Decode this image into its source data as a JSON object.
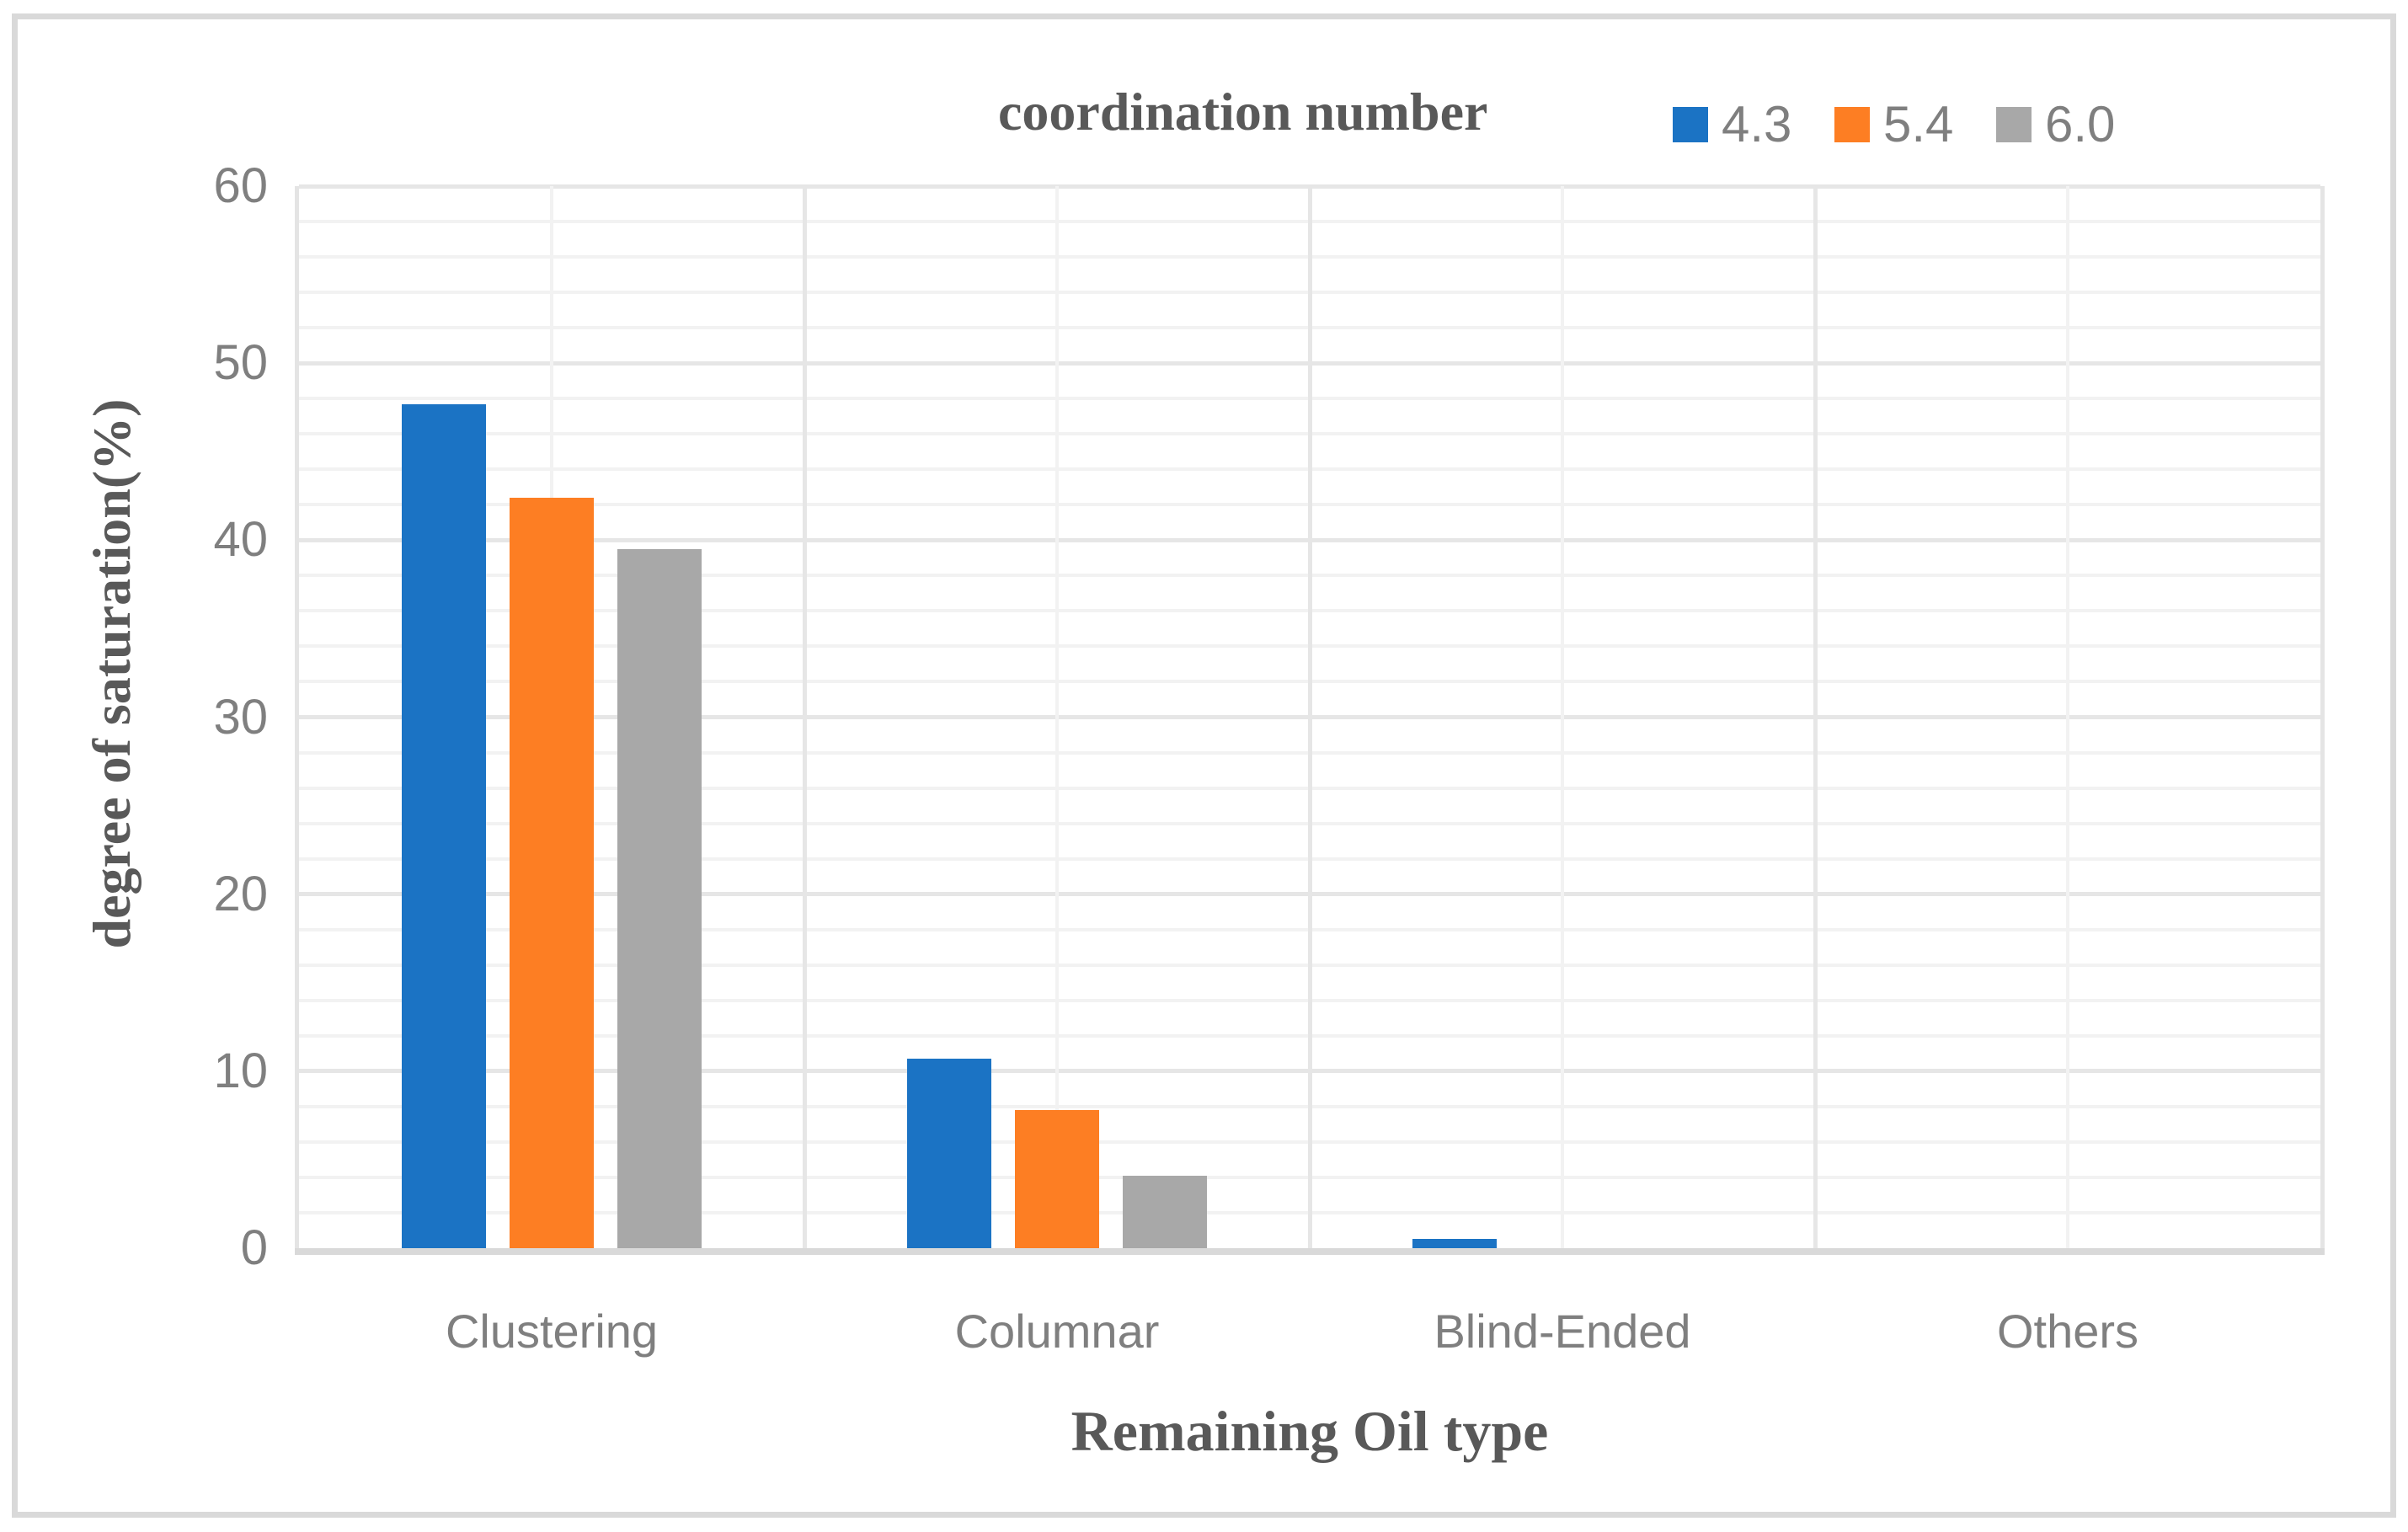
{
  "legend": {
    "title": "coordination number"
  },
  "y_axis": {
    "title": "degree of saturation(%)",
    "tick_labels": [
      "0",
      "10",
      "20",
      "30",
      "40",
      "50",
      "60"
    ]
  },
  "x_axis": {
    "title": "Remaining Oil type",
    "category_labels": [
      "Clustering",
      "Columnar",
      "Blind-Ended",
      "Others"
    ]
  },
  "chart_data": {
    "type": "bar",
    "title": "coordination number",
    "categories": [
      "Clustering",
      "Columnar",
      "Blind-Ended",
      "Others"
    ],
    "series": [
      {
        "name": "4.3",
        "color": "#1b73c4",
        "values": [
          47.7,
          10.7,
          0.5,
          0
        ]
      },
      {
        "name": "5.4",
        "color": "#fd7e23",
        "values": [
          42.4,
          7.8,
          0,
          0
        ]
      },
      {
        "name": "6.0",
        "color": "#a8a8a8",
        "values": [
          39.5,
          4.1,
          0,
          0
        ]
      }
    ],
    "xlabel": "Remaining Oil type",
    "ylabel": "degree of saturation(%)",
    "ylim": [
      0,
      60
    ],
    "y_major_step": 10,
    "y_minor_step": 2,
    "grid": true,
    "legend_position": "top"
  },
  "colors": {
    "series_blue": "#1b73c4",
    "series_orange": "#fd7e23",
    "series_gray": "#a8a8a8",
    "gridline_minor": "#f2f2f2",
    "gridline_major": "#e6e6e6",
    "axis_line": "#d9d9d9",
    "frame_border": "#d9d9d9",
    "tick_text": "#7f7f7f",
    "title_text": "#595959"
  }
}
